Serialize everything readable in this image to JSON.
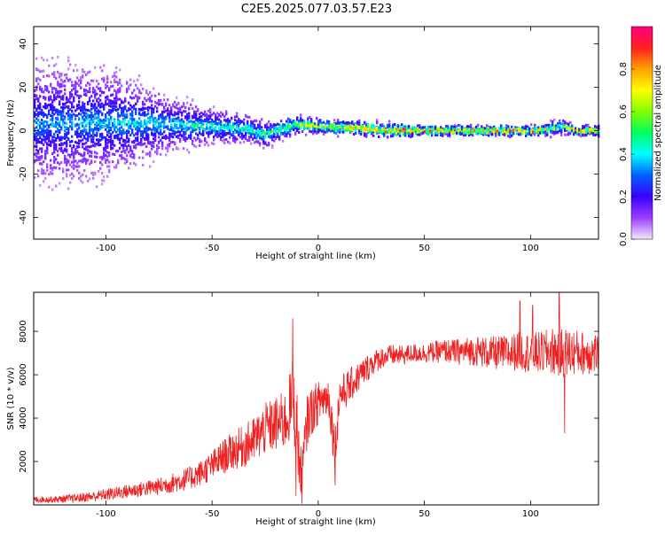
{
  "title": "C2E5.2025.077.03.57.E23",
  "chart_data": [
    {
      "type": "heatmap",
      "xlabel": "Height of straight line (km)",
      "ylabel": "Frequency (Hz)",
      "xlim": [
        -134,
        132
      ],
      "ylim": [
        -50,
        48
      ],
      "xticks": [
        "-100",
        "-50",
        "0",
        "50",
        "100"
      ],
      "xtick_values": [
        -100,
        -50,
        0,
        50,
        100
      ],
      "yticks": [
        "-40",
        "-20",
        "0",
        "20",
        "40"
      ],
      "ytick_values": [
        -40,
        -20,
        0,
        20,
        40
      ],
      "colorbar": {
        "label": "Normalized spectral amplitude",
        "range": [
          0,
          1
        ],
        "ticks": [
          "0.0",
          "0.2",
          "0.4",
          "0.6",
          "0.8"
        ],
        "tick_values": [
          0.0,
          0.2,
          0.4,
          0.6,
          0.8
        ],
        "colors": [
          "#f4e8fb",
          "#9a40ff",
          "#3a00ff",
          "#0060ff",
          "#00ffff",
          "#00ff60",
          "#80ff00",
          "#ffff00",
          "#ffa000",
          "#ff2020",
          "#ff0080"
        ]
      },
      "ridge": {
        "x": [
          -134,
          -100,
          -70,
          -50,
          -35,
          -25,
          -20,
          -10,
          0,
          20,
          35,
          50,
          70,
          90,
          105,
          110,
          115,
          120,
          132
        ],
        "y": [
          3,
          4,
          3,
          2,
          1,
          -2,
          0,
          3,
          2,
          1,
          0,
          0,
          0,
          0,
          0,
          1,
          2,
          0,
          0
        ],
        "amplitude": [
          0.35,
          0.4,
          0.45,
          0.5,
          0.55,
          0.55,
          0.6,
          0.7,
          0.85,
          0.9,
          0.95,
          0.95,
          0.95,
          0.92,
          0.9,
          0.7,
          0.6,
          0.9,
          0.9
        ],
        "spread_hz": [
          30,
          25,
          12,
          8,
          6,
          6,
          5,
          4,
          3,
          3,
          3,
          2,
          2,
          2,
          2,
          3,
          3,
          2,
          2
        ]
      }
    },
    {
      "type": "line",
      "xlabel": "Height of straight line (km)",
      "ylabel": "SNR (10 * v/v)",
      "xlim": [
        -134,
        132
      ],
      "ylim": [
        0,
        9800
      ],
      "xticks": [
        "-100",
        "-50",
        "0",
        "50",
        "100"
      ],
      "xtick_values": [
        -100,
        -50,
        0,
        50,
        100
      ],
      "yticks": [
        "2000",
        "4000",
        "6000",
        "8000"
      ],
      "ytick_values": [
        2000,
        4000,
        6000,
        8000
      ],
      "series": [
        {
          "color": "#ee2020",
          "x": [
            -134,
            -125,
            -115,
            -105,
            -95,
            -85,
            -75,
            -65,
            -60,
            -55,
            -50,
            -45,
            -40,
            -35,
            -30,
            -25,
            -20,
            -15,
            -12,
            -10,
            -8,
            -5,
            -2,
            0,
            2,
            5,
            8,
            10,
            12,
            15,
            20,
            25,
            30,
            35,
            40,
            45,
            50,
            55,
            60,
            65,
            70,
            75,
            80,
            85,
            90,
            95,
            100,
            105,
            110,
            115,
            120,
            125,
            132
          ],
          "y": [
            250,
            250,
            300,
            400,
            550,
            700,
            850,
            1100,
            1250,
            1500,
            1800,
            2200,
            2500,
            2700,
            3000,
            3500,
            3700,
            3900,
            5000,
            3500,
            1000,
            4000,
            4500,
            4700,
            4900,
            5000,
            2500,
            5100,
            5200,
            5500,
            6000,
            6500,
            6800,
            6900,
            6900,
            7000,
            7000,
            7050,
            7100,
            7050,
            7100,
            7100,
            7000,
            7000,
            7000,
            7100,
            7000,
            7000,
            7100,
            7000,
            7050,
            7000,
            7000
          ],
          "noise": [
            150,
            150,
            200,
            250,
            300,
            350,
            400,
            500,
            550,
            600,
            700,
            800,
            900,
            1000,
            1100,
            1200,
            1300,
            1400,
            1800,
            1800,
            1500,
            1200,
            1100,
            1000,
            1000,
            1000,
            1200,
            900,
            900,
            800,
            700,
            600,
            500,
            500,
            450,
            450,
            450,
            500,
            550,
            600,
            650,
            700,
            750,
            800,
            850,
            900,
            950,
            1000,
            1100,
            1200,
            1100,
            1000,
            1000
          ],
          "spikes": [
            {
              "x": -12,
              "y": 8600
            },
            {
              "x": -10.5,
              "y": 400
            },
            {
              "x": 8,
              "y": 900
            },
            {
              "x": 113.5,
              "y": 9800
            },
            {
              "x": 116,
              "y": 3300
            },
            {
              "x": 95,
              "y": 9400
            },
            {
              "x": 101,
              "y": 9200
            }
          ]
        }
      ]
    }
  ]
}
